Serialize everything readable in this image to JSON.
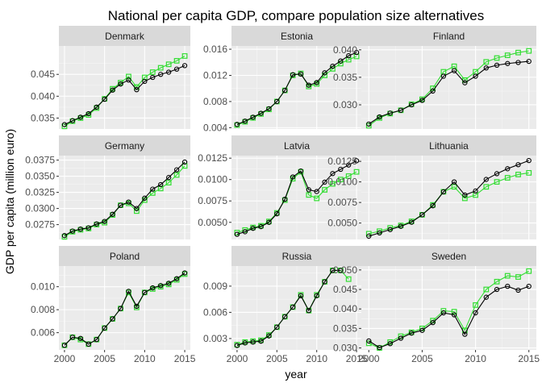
{
  "chart_data": {
    "type": "line",
    "title": "National per capita GDP, compare population size alternatives",
    "xlabel": "year",
    "ylabel": "GDP per capita (million euro)",
    "xlim": [
      1999.3,
      2015.7
    ],
    "x_ticks": [
      2000,
      2005,
      2010,
      2015
    ],
    "grid": true,
    "legend": "none",
    "series_style": [
      {
        "color": "#000000",
        "marker": "circle"
      },
      {
        "color": "#33dd33",
        "marker": "square"
      }
    ],
    "panels": [
      {
        "name": "Denmark",
        "ylim": [
          0.0325,
          0.0515
        ],
        "y_ticks": [
          0.035,
          0.04,
          0.045
        ],
        "x": [
          2000,
          2001,
          2002,
          2003,
          2004,
          2005,
          2006,
          2007,
          2008,
          2009,
          2010,
          2011,
          2012,
          2013,
          2014,
          2015
        ],
        "series": [
          {
            "values": [
              0.0335,
              0.0344,
              0.0352,
              0.036,
              0.0375,
              0.0393,
              0.0414,
              0.0428,
              0.0437,
              0.0415,
              0.0434,
              0.0443,
              0.045,
              0.0455,
              0.0462,
              0.047
            ]
          },
          {
            "values": [
              0.0331,
              0.0343,
              0.035,
              0.0357,
              0.0373,
              0.0394,
              0.0417,
              0.0431,
              0.0445,
              0.0421,
              0.0443,
              0.0455,
              0.0465,
              0.0473,
              0.0481,
              0.0492
            ]
          }
        ]
      },
      {
        "name": "Estonia",
        "ylim": [
          0.0038,
          0.0165
        ],
        "y_ticks": [
          0.004,
          0.008,
          0.012,
          0.016
        ],
        "x": [
          2000,
          2001,
          2002,
          2003,
          2004,
          2005,
          2006,
          2007,
          2008,
          2009,
          2010,
          2011,
          2012,
          2013,
          2014,
          2015
        ],
        "series": [
          {
            "values": [
              0.0045,
              0.005,
              0.0056,
              0.0062,
              0.0069,
              0.008,
              0.0097,
              0.0121,
              0.0122,
              0.0105,
              0.0109,
              0.0124,
              0.0134,
              0.0142,
              0.015,
              0.0155
            ]
          },
          {
            "values": [
              0.0044,
              0.0049,
              0.0055,
              0.0061,
              0.0068,
              0.008,
              0.0097,
              0.012,
              0.0123,
              0.0103,
              0.0107,
              0.012,
              0.013,
              0.0138,
              0.0144,
              0.0149
            ]
          }
        ]
      },
      {
        "name": "Finland",
        "ylim": [
          0.0256,
          0.0407
        ],
        "y_ticks": [
          0.03,
          0.035,
          0.04
        ],
        "x": [
          2000,
          2001,
          2002,
          2003,
          2004,
          2005,
          2006,
          2007,
          2008,
          2009,
          2010,
          2011,
          2012,
          2013,
          2014,
          2015
        ],
        "series": [
          {
            "values": [
              0.0265,
              0.0278,
              0.0285,
              0.029,
              0.03,
              0.0308,
              0.0325,
              0.0352,
              0.0362,
              0.034,
              0.0352,
              0.0367,
              0.0372,
              0.0375,
              0.0377,
              0.0379
            ]
          },
          {
            "values": [
              0.0262,
              0.0276,
              0.0284,
              0.029,
              0.0301,
              0.031,
              0.033,
              0.036,
              0.037,
              0.0345,
              0.036,
              0.0378,
              0.0385,
              0.039,
              0.0395,
              0.0398
            ]
          }
        ]
      },
      {
        "name": "Germany",
        "ylim": [
          0.0252,
          0.0382
        ],
        "y_ticks": [
          0.0275,
          0.03,
          0.0325,
          0.035,
          0.0375
        ],
        "x": [
          2000,
          2001,
          2002,
          2003,
          2004,
          2005,
          2006,
          2007,
          2008,
          2009,
          2010,
          2011,
          2012,
          2013,
          2014,
          2015
        ],
        "series": [
          {
            "values": [
              0.0258,
              0.0265,
              0.0268,
              0.027,
              0.0276,
              0.028,
              0.0291,
              0.0305,
              0.031,
              0.03,
              0.0316,
              0.033,
              0.0337,
              0.0348,
              0.036,
              0.0372
            ]
          },
          {
            "values": [
              0.0256,
              0.0264,
              0.0267,
              0.0269,
              0.0275,
              0.0278,
              0.029,
              0.0305,
              0.0308,
              0.0296,
              0.0313,
              0.0324,
              0.0331,
              0.034,
              0.0352,
              0.0366
            ]
          }
        ]
      },
      {
        "name": "Latvia",
        "ylim": [
          0.003,
          0.0128
        ],
        "y_ticks": [
          0.005,
          0.0075,
          0.01,
          0.0125
        ],
        "x": [
          2000,
          2001,
          2002,
          2003,
          2004,
          2005,
          2006,
          2007,
          2008,
          2009,
          2010,
          2011,
          2012,
          2013,
          2014,
          2015
        ],
        "series": [
          {
            "values": [
              0.0036,
              0.0039,
              0.0043,
              0.0045,
              0.005,
              0.006,
              0.0077,
              0.0103,
              0.011,
              0.0088,
              0.0086,
              0.0097,
              0.0107,
              0.0112,
              0.0117,
              0.0122
            ]
          },
          {
            "values": [
              0.0038,
              0.0041,
              0.0044,
              0.0046,
              0.0051,
              0.0061,
              0.0076,
              0.0101,
              0.0109,
              0.0082,
              0.0078,
              0.0088,
              0.0095,
              0.01,
              0.0104,
              0.0109
            ]
          }
        ]
      },
      {
        "name": "Lithuania",
        "ylim": [
          0.003,
          0.0132
        ],
        "y_ticks": [
          0.005,
          0.0075,
          0.01,
          0.0125
        ],
        "x": [
          2000,
          2001,
          2002,
          2003,
          2004,
          2005,
          2006,
          2007,
          2008,
          2009,
          2010,
          2011,
          2012,
          2013,
          2014,
          2015
        ],
        "series": [
          {
            "values": [
              0.0034,
              0.0038,
              0.0042,
              0.0046,
              0.0051,
              0.006,
              0.0071,
              0.0088,
              0.01,
              0.0084,
              0.0089,
              0.0103,
              0.011,
              0.0116,
              0.0121,
              0.0126
            ]
          },
          {
            "values": [
              0.0037,
              0.004,
              0.0044,
              0.0047,
              0.0052,
              0.006,
              0.0072,
              0.0088,
              0.0094,
              0.008,
              0.0084,
              0.0094,
              0.01,
              0.0105,
              0.0109,
              0.0111
            ]
          }
        ]
      },
      {
        "name": "Poland",
        "ylim": [
          0.0045,
          0.0118
        ],
        "y_ticks": [
          0.006,
          0.008,
          0.01
        ],
        "x": [
          2000,
          2001,
          2002,
          2003,
          2004,
          2005,
          2006,
          2007,
          2008,
          2009,
          2010,
          2011,
          2012,
          2013,
          2014,
          2015
        ],
        "series": [
          {
            "values": [
              0.0049,
              0.0056,
              0.0055,
              0.005,
              0.0054,
              0.0064,
              0.0072,
              0.0081,
              0.0096,
              0.0083,
              0.0095,
              0.0099,
              0.0101,
              0.0103,
              0.0107,
              0.0112
            ]
          },
          {
            "values": [
              0.0049,
              0.0056,
              0.0054,
              0.005,
              0.0054,
              0.0064,
              0.0072,
              0.0081,
              0.0095,
              0.0082,
              0.0095,
              0.0098,
              0.01,
              0.0102,
              0.0106,
              0.0111
            ]
          }
        ]
      },
      {
        "name": "Russia",
        "ylim": [
          0.0017,
          0.0113
        ],
        "y_ticks": [
          0.003,
          0.006,
          0.009
        ],
        "x": [
          2000,
          2001,
          2002,
          2003,
          2004,
          2005,
          2006,
          2007,
          2008,
          2009,
          2010,
          2011,
          2012,
          2013,
          2014
        ],
        "series": [
          {
            "values": [
              0.0022,
              0.0025,
              0.0026,
              0.0027,
              0.0033,
              0.0043,
              0.0055,
              0.0066,
              0.0079,
              0.0062,
              0.0079,
              0.0095,
              0.0108,
              0.0108,
              null
            ]
          },
          {
            "values": [
              0.0023,
              0.0026,
              0.0027,
              0.0028,
              0.0034,
              0.0043,
              0.0055,
              0.0066,
              0.008,
              0.0062,
              0.008,
              0.0095,
              0.0108,
              0.0108,
              0.0098
            ]
          }
        ]
      },
      {
        "name": "Sweden",
        "ylim": [
          0.0295,
          0.051
        ],
        "y_ticks": [
          0.03,
          0.035,
          0.04,
          0.045,
          0.05
        ],
        "x": [
          2000,
          2001,
          2002,
          2003,
          2004,
          2005,
          2006,
          2007,
          2008,
          2009,
          2010,
          2011,
          2012,
          2013,
          2014,
          2015
        ],
        "series": [
          {
            "values": [
              0.0318,
              0.0301,
              0.0311,
              0.0325,
              0.0338,
              0.0345,
              0.0365,
              0.039,
              0.0385,
              0.0335,
              0.039,
              0.043,
              0.045,
              0.0458,
              0.0448,
              0.0458
            ]
          },
          {
            "values": [
              0.0312,
              0.03,
              0.0315,
              0.033,
              0.034,
              0.035,
              0.037,
              0.0395,
              0.0393,
              0.0345,
              0.041,
              0.045,
              0.047,
              0.0485,
              0.0482,
              0.0497
            ]
          }
        ]
      }
    ]
  }
}
